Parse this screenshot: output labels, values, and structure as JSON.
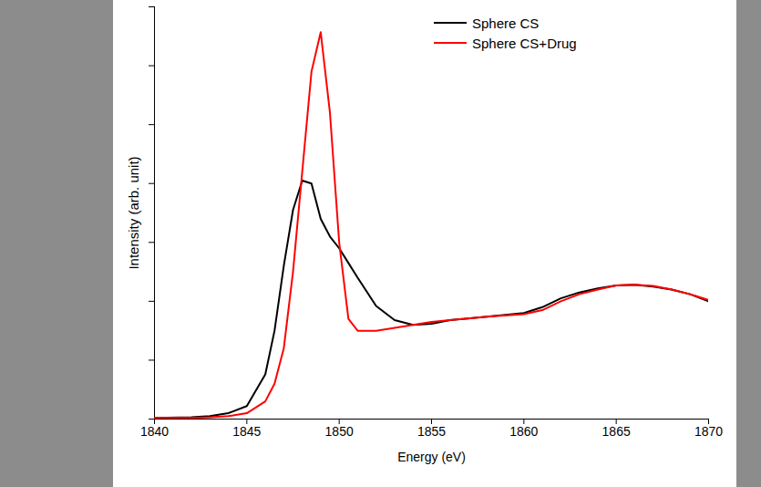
{
  "chart_data": {
    "type": "line",
    "x_label": "Energy (eV)",
    "y_label": "Intensity (arb. unit)",
    "x": [
      1840,
      1842,
      1843,
      1844,
      1845,
      1846,
      1846.5,
      1847,
      1847.5,
      1848,
      1848.5,
      1849,
      1849.5,
      1850,
      1850.5,
      1851,
      1852,
      1853,
      1854,
      1855,
      1856,
      1858,
      1860,
      1861,
      1862,
      1863,
      1864,
      1865,
      1866,
      1867,
      1868,
      1869,
      1870
    ],
    "series": [
      {
        "name": "Sphere CS",
        "color": "#000000",
        "values": [
          0.02,
          0.03,
          0.05,
          0.1,
          0.22,
          0.76,
          1.5,
          2.6,
          3.55,
          4.05,
          4.0,
          3.4,
          3.1,
          2.9,
          2.65,
          2.4,
          1.92,
          1.68,
          1.6,
          1.62,
          1.68,
          1.74,
          1.8,
          1.9,
          2.05,
          2.15,
          2.22,
          2.27,
          2.28,
          2.25,
          2.2,
          2.12,
          2.0
        ]
      },
      {
        "name": "Sphere CS+Drug",
        "color": "#ff0000",
        "values": [
          0.02,
          0.02,
          0.03,
          0.05,
          0.1,
          0.3,
          0.6,
          1.2,
          2.5,
          4.2,
          5.9,
          6.57,
          5.2,
          3.0,
          1.7,
          1.5,
          1.5,
          1.55,
          1.6,
          1.65,
          1.68,
          1.74,
          1.78,
          1.85,
          2.0,
          2.12,
          2.2,
          2.27,
          2.28,
          2.26,
          2.2,
          2.12,
          2.02
        ]
      }
    ],
    "xlim": [
      1840,
      1870
    ],
    "xticks": [
      1840,
      1845,
      1850,
      1855,
      1860,
      1865,
      1870
    ],
    "ylim": [
      0,
      7
    ],
    "yticks": [
      0,
      1,
      2,
      3,
      4,
      5,
      6,
      7
    ],
    "tick_labels": "x",
    "legend": "top-right",
    "grid": false
  }
}
